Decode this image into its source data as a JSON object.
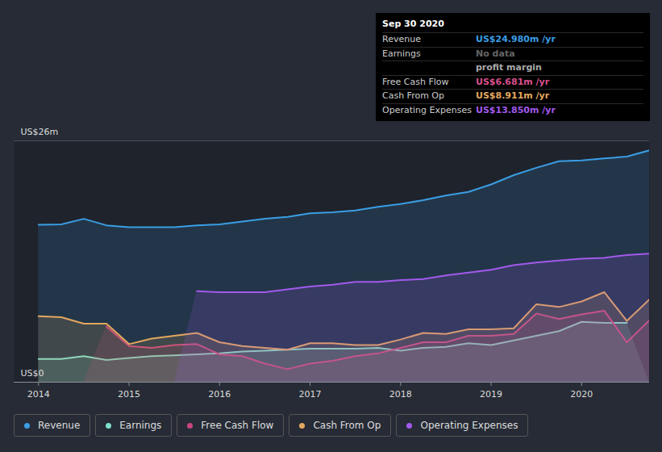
{
  "chart_data": {
    "type": "area",
    "x": [
      2014,
      2014.25,
      2014.5,
      2014.75,
      2015,
      2015.25,
      2015.5,
      2015.75,
      2016,
      2016.25,
      2016.5,
      2016.75,
      2017,
      2017.25,
      2017.5,
      2017.75,
      2018,
      2018.25,
      2018.5,
      2018.75,
      2019,
      2019.25,
      2019.5,
      2019.75,
      2020,
      2020.25,
      2020.5,
      2020.75
    ],
    "xlim": [
      2013.73,
      2020.75
    ],
    "xticks": [
      2014,
      2015,
      2016,
      2017,
      2018,
      2019,
      2020
    ],
    "ylim": [
      0,
      26
    ],
    "yticks": [
      {
        "value": 0,
        "label": "US$0"
      },
      {
        "value": 26,
        "label": "US$26m"
      }
    ],
    "grid": true,
    "series": [
      {
        "name": "Revenue",
        "color": "#3a9ee4",
        "values": [
          16.96,
          17.0,
          17.6,
          16.9,
          16.7,
          16.7,
          16.7,
          16.9,
          17.0,
          17.3,
          17.6,
          17.8,
          18.2,
          18.3,
          18.5,
          18.9,
          19.2,
          19.6,
          20.1,
          20.5,
          21.3,
          22.3,
          23.1,
          23.8,
          23.9,
          24.1,
          24.3,
          24.98
        ]
      },
      {
        "name": "Earnings",
        "color": "#7fe0cc",
        "values": [
          2.5,
          2.5,
          2.8,
          2.4,
          2.6,
          2.8,
          2.9,
          3.0,
          3.1,
          3.3,
          3.4,
          3.5,
          3.6,
          3.6,
          3.6,
          3.7,
          3.4,
          3.7,
          3.8,
          4.2,
          4.0,
          4.5,
          5.0,
          5.5,
          6.5,
          6.4,
          6.4,
          null
        ]
      },
      {
        "name": "Free Cash Flow",
        "color": "#c8457f",
        "values": [
          null,
          null,
          null,
          6.0,
          3.9,
          3.7,
          4.0,
          4.1,
          3.0,
          2.8,
          2.0,
          1.4,
          2.0,
          2.3,
          2.8,
          3.1,
          3.7,
          4.3,
          4.3,
          5.0,
          5.0,
          5.2,
          7.4,
          6.8,
          7.3,
          7.7,
          4.3,
          6.681
        ]
      },
      {
        "name": "Cash From Op",
        "color": "#e3a75e",
        "values": [
          7.1,
          7.0,
          6.3,
          6.3,
          4.1,
          4.7,
          5.0,
          5.3,
          4.3,
          3.9,
          3.7,
          3.5,
          4.2,
          4.2,
          4.0,
          4.0,
          4.6,
          5.3,
          5.2,
          5.7,
          5.7,
          5.8,
          8.4,
          8.1,
          8.7,
          9.7,
          6.6,
          8.911
        ]
      },
      {
        "name": "Operating Expenses",
        "color": "#a259ec",
        "values": [
          null,
          null,
          null,
          null,
          null,
          null,
          null,
          9.8,
          9.7,
          9.7,
          9.7,
          10.0,
          10.3,
          10.5,
          10.8,
          10.8,
          11.0,
          11.1,
          11.5,
          11.8,
          12.1,
          12.6,
          12.9,
          13.1,
          13.3,
          13.4,
          13.7,
          13.85
        ]
      }
    ],
    "tooltip": {
      "title": "Sep 30 2020",
      "rows": [
        {
          "label": "Revenue",
          "value": "US$24.980m /yr",
          "color": "#3a9ee4"
        },
        {
          "label": "Earnings",
          "value": "No data",
          "color": "#666666"
        },
        {
          "value": "profit margin",
          "color": "#aaaaaa"
        },
        {
          "label": "Free Cash Flow",
          "value": "US$6.681m /yr",
          "color": "#d9508c"
        },
        {
          "label": "Cash From Op",
          "value": "US$8.911m /yr",
          "color": "#e3a75e"
        },
        {
          "label": "Operating Expenses",
          "value": "US$13.850m /yr",
          "color": "#a259ec"
        }
      ]
    }
  }
}
